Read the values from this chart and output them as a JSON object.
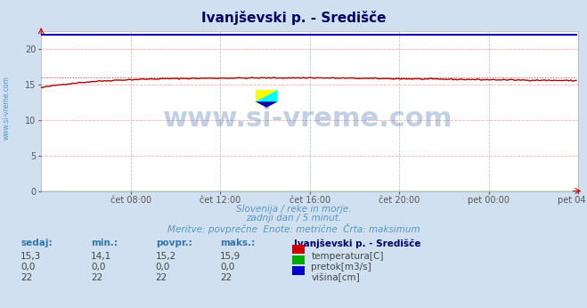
{
  "title": "Ivanjševski p. - Središče",
  "bg_color": "#d0e0f0",
  "plot_bg_color": "#ffffff",
  "grid_color_h": "#ffcccc",
  "grid_color_v": "#ccddcc",
  "x_labels": [
    "čet 08:00",
    "čet 12:00",
    "čet 16:00",
    "čet 20:00",
    "pet 00:00",
    "pet 04:00"
  ],
  "x_ticks": [
    48,
    96,
    144,
    192,
    240,
    288
  ],
  "n_points": 288,
  "ylim": [
    0,
    22.5
  ],
  "yticks": [
    0,
    5,
    10,
    15,
    20
  ],
  "temp_color": "#aa0000",
  "temp_max_color": "#dd4444",
  "pretok_color": "#008800",
  "visina_color": "#0000bb",
  "temp_max_val": 15.9,
  "visina_val": 22,
  "subtitle1": "Slovenija / reke in morje.",
  "subtitle2": "zadnji dan / 5 minut.",
  "subtitle3": "Meritve: povprečne  Enote: metrične  Črta: maksimum",
  "table_headers": [
    "sedaj:",
    "min.:",
    "povpr.:",
    "maks.:"
  ],
  "row1": [
    "15,3",
    "14,1",
    "15,2",
    "15,9"
  ],
  "row2": [
    "0,0",
    "0,0",
    "0,0",
    "0,0"
  ],
  "row3": [
    "22",
    "22",
    "22",
    "22"
  ],
  "legend_title": "Ivanjševski p. - Središče",
  "legend_items": [
    "temperatura[C]",
    "pretok[m3/s]",
    "višina[cm]"
  ],
  "legend_colors": [
    "#cc0000",
    "#00aa00",
    "#0000cc"
  ],
  "watermark": "www.si-vreme.com",
  "left_label": "www.si-vreme.com",
  "title_color": "#000066",
  "text_color": "#5599bb",
  "header_color": "#3377aa"
}
